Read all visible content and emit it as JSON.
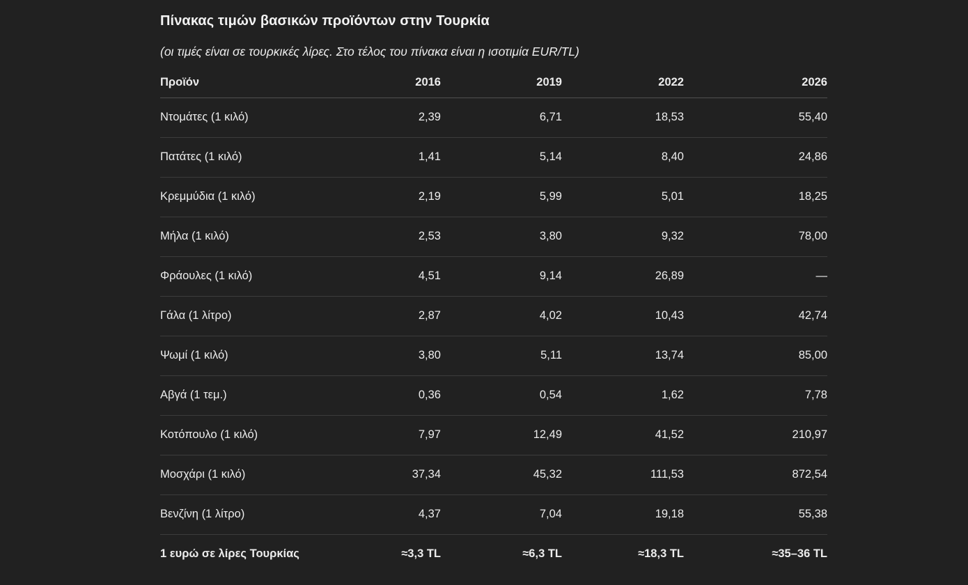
{
  "page": {
    "title": "Πίνακας τιμών βασικών προϊόντων στην Τουρκία",
    "subtitle": "(οι τιμές είναι σε τουρκικές λίρες. Στο τέλος του πίνακα είναι η ισοτιμία EUR/TL)"
  },
  "table": {
    "columns": [
      "Προϊόν",
      "2016",
      "2019",
      "2022",
      "2026"
    ],
    "rows": [
      [
        "Ντομάτες (1 κιλό)",
        "2,39",
        "6,71",
        "18,53",
        "55,40"
      ],
      [
        "Πατάτες (1 κιλό)",
        "1,41",
        "5,14",
        "8,40",
        "24,86"
      ],
      [
        "Κρεμμύδια (1 κιλό)",
        "2,19",
        "5,99",
        "5,01",
        "18,25"
      ],
      [
        "Μήλα (1 κιλό)",
        "2,53",
        "3,80",
        "9,32",
        "78,00"
      ],
      [
        "Φράουλες (1 κιλό)",
        "4,51",
        "9,14",
        "26,89",
        "—"
      ],
      [
        "Γάλα (1 λίτρο)",
        "2,87",
        "4,02",
        "10,43",
        "42,74"
      ],
      [
        "Ψωμί (1 κιλό)",
        "3,80",
        "5,11",
        "13,74",
        "85,00"
      ],
      [
        "Αβγά (1 τεμ.)",
        "0,36",
        "0,54",
        "1,62",
        "7,78"
      ],
      [
        "Κοτόπουλο (1 κιλό)",
        "7,97",
        "12,49",
        "41,52",
        "210,97"
      ],
      [
        "Μοσχάρι (1 κιλό)",
        "37,34",
        "45,32",
        "111,53",
        "872,54"
      ],
      [
        "Βενζίνη (1 λίτρο)",
        "4,37",
        "7,04",
        "19,18",
        "55,38"
      ]
    ],
    "footer": [
      "1 ευρώ σε λίρες Τουρκίας",
      "≈3,3 TL",
      "≈6,3 TL",
      "≈18,3 TL",
      "≈35–36 TL"
    ]
  },
  "colors": {
    "background": "#212121",
    "text": "#ececec",
    "title": "#f2f2f2",
    "divider": "#3c3c3c",
    "header_divider": "#505050"
  }
}
